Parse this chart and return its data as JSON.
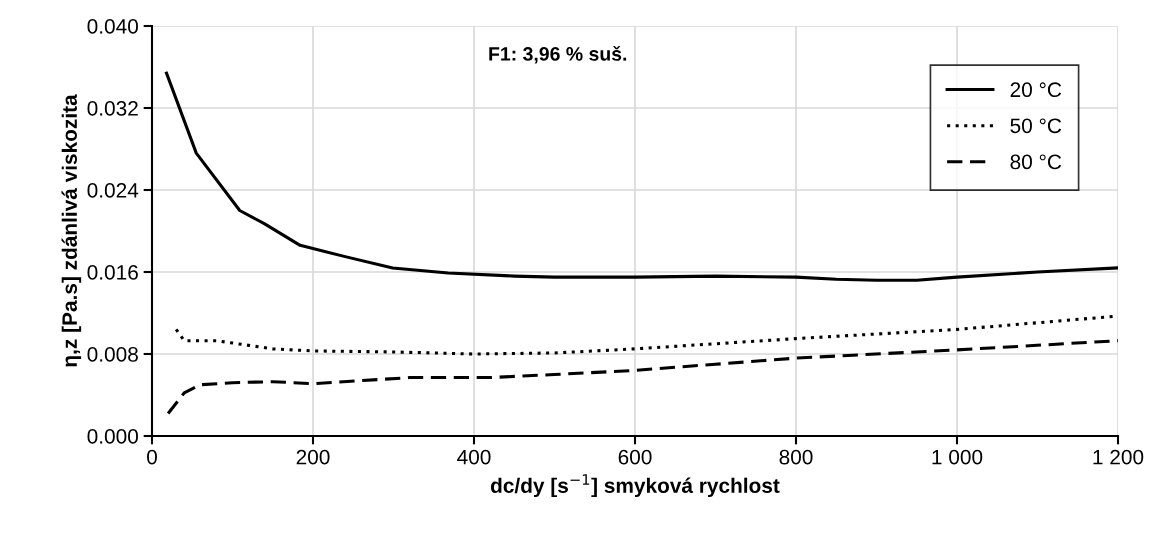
{
  "chart_data": {
    "type": "line",
    "xlabel": "dc/dy [s$^{−1}$] smyková rychlost",
    "ylabel": "η,z [Pa.s] zdánlivá viskozita",
    "annotations": [
      "F1: 3,96 % suš."
    ],
    "xlim": [
      0,
      1200
    ],
    "xticks": [
      0,
      200,
      400,
      600,
      800,
      {
        "value": 1000,
        "label": "1 000"
      },
      {
        "value": 1200,
        "label": "1 200"
      }
    ],
    "ylim": [
      0,
      0.04
    ],
    "yticks": [
      {
        "value": 0,
        "label": "0.000"
      },
      {
        "value": 0.008,
        "label": "0.008"
      },
      {
        "value": 0.016,
        "label": "0.016"
      },
      {
        "value": 0.024,
        "label": "0.024"
      },
      {
        "value": 0.032,
        "label": "0.032"
      },
      {
        "value": 0.04,
        "label": "0.040"
      }
    ],
    "grid": true,
    "legend": "top right",
    "marker": "none",
    "series": [
      {
        "name": "20 °C",
        "color": "#000000",
        "line_style": "solid",
        "x": [
          18,
          55,
          109,
          140,
          184,
          240,
          299,
          368,
          450,
          500,
          600,
          700,
          800,
          850,
          900,
          950,
          1000,
          1100,
          1200
        ],
        "values": [
          0.0354,
          0.0276,
          0.022,
          0.0207,
          0.0186,
          0.0175,
          0.0164,
          0.0159,
          0.0156,
          0.0155,
          0.0155,
          0.0156,
          0.0155,
          0.0153,
          0.0152,
          0.0152,
          0.0155,
          0.016,
          0.0164
        ]
      },
      {
        "name": "50 °C",
        "color": "#000000",
        "line_style": "dotted",
        "x": [
          30,
          40,
          80,
          150,
          200,
          300,
          400,
          500,
          600,
          700,
          800,
          1000,
          1200
        ],
        "values": [
          0.0104,
          0.0093,
          0.0093,
          0.0085,
          0.0083,
          0.0082,
          0.008,
          0.0081,
          0.0085,
          0.009,
          0.0095,
          0.0104,
          0.0117
        ]
      },
      {
        "name": "80 °C",
        "color": "#000000",
        "line_style": "dashed",
        "x": [
          20,
          40,
          60,
          100,
          150,
          200,
          320,
          420,
          500,
          600,
          700,
          800,
          1000,
          1200
        ],
        "values": [
          0.0022,
          0.0042,
          0.005,
          0.0052,
          0.0053,
          0.0051,
          0.0057,
          0.0057,
          0.006,
          0.0064,
          0.007,
          0.0076,
          0.0084,
          0.0093
        ]
      }
    ]
  }
}
